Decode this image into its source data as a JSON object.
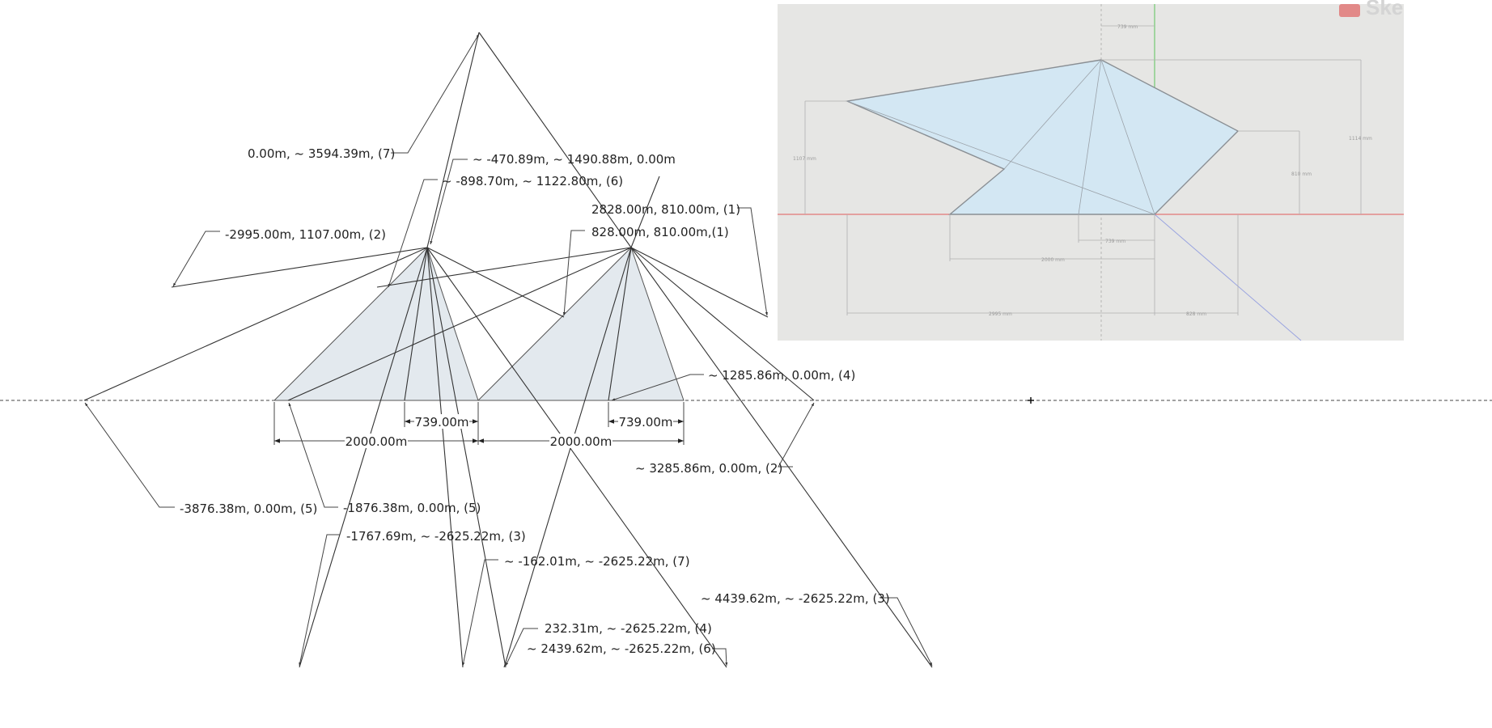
{
  "labels": {
    "p7_top": "0.00m, ~ 3594.39m, (7)",
    "p_center": "~ -470.89m, ~ 1490.88m, 0.00m",
    "p6_upper": "~ -898.70m, ~ 1122.80m, (6)",
    "p1_a": "2828.00m, 810.00m, (1)",
    "p2_left": "-2995.00m, 1107.00m, (2)",
    "p1_b": "828.00m, 810.00m,(1)",
    "p4_right": "~ 1285.86m, 0.00m, (4)",
    "p2_right": "~ 3285.86m, 0.00m, (2)",
    "p5_far": "-3876.38m, 0.00m, (5)",
    "p5_near": "-1876.38m, 0.00m, (5)",
    "p3_left": "-1767.69m, ~ -2625.22m, (3)",
    "p7_low": "~ -162.01m, ~ -2625.22m, (7)",
    "p3_right": "~ 4439.62m, ~ -2625.22m, (3)",
    "p4_low": "232.31m, ~ -2625.22m, (4)",
    "p6_low": "~ 2439.62m, ~ -2625.22m, (6)"
  },
  "dimensions": {
    "d739_left": "739.00m",
    "d739_right": "739.00m",
    "d2000_left": "2000.00m",
    "d2000_right": "2000.00m"
  },
  "reference": {
    "logo": "Ske",
    "dims": [
      "739 mm",
      "1107 mm",
      "1114 mm",
      "810 mm",
      "739 mm",
      "2000 mm",
      "2995 mm",
      "828 mm"
    ]
  },
  "colors": {
    "triangle_fill": "#e3e9ee",
    "reference_background": "#e6e6e4",
    "reference_shape": "#d3e7f3",
    "reference_red_axis": "#e05a5a",
    "reference_green_axis": "#5cc45c",
    "reference_blue_axis": "#9aa4e0"
  }
}
